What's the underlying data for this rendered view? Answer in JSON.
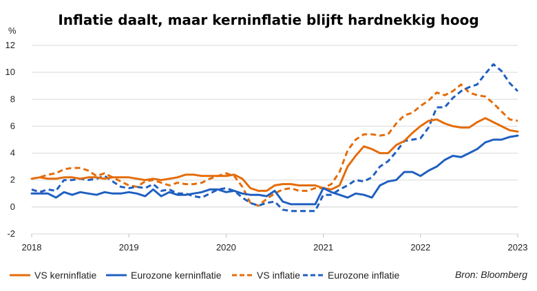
{
  "chart_data": {
    "type": "line",
    "title": "Inflatie daalt, maar kerninflatie blijft hardnekkig hoog",
    "ylabel": "%",
    "xlabel": "",
    "ylim": [
      -2,
      12
    ],
    "yticks": [
      -2,
      0,
      2,
      4,
      6,
      8,
      10,
      12
    ],
    "xlim": [
      2018.0,
      2023.0
    ],
    "xticks": [
      "2018",
      "2019",
      "2020",
      "2021",
      "2022",
      "2023"
    ],
    "grid": true,
    "legend_position": "bottom",
    "source": "Bron: Bloomberg",
    "series": [
      {
        "name": "VS kerninflatie",
        "color": "#E46C0A",
        "dash": "solid",
        "points": [
          [
            2018.0,
            2.1
          ],
          [
            2018.083,
            2.2
          ],
          [
            2018.167,
            2.1
          ],
          [
            2018.25,
            2.1
          ],
          [
            2018.333,
            2.2
          ],
          [
            2018.417,
            2.2
          ],
          [
            2018.5,
            2.1
          ],
          [
            2018.583,
            2.2
          ],
          [
            2018.667,
            2.2
          ],
          [
            2018.75,
            2.1
          ],
          [
            2018.833,
            2.2
          ],
          [
            2018.917,
            2.2
          ],
          [
            2019.0,
            2.2
          ],
          [
            2019.083,
            2.1
          ],
          [
            2019.167,
            2.0
          ],
          [
            2019.25,
            2.1
          ],
          [
            2019.333,
            2.0
          ],
          [
            2019.417,
            2.1
          ],
          [
            2019.5,
            2.2
          ],
          [
            2019.583,
            2.4
          ],
          [
            2019.667,
            2.4
          ],
          [
            2019.75,
            2.3
          ],
          [
            2019.833,
            2.3
          ],
          [
            2019.917,
            2.3
          ],
          [
            2020.0,
            2.3
          ],
          [
            2020.083,
            2.4
          ],
          [
            2020.167,
            2.1
          ],
          [
            2020.25,
            1.4
          ],
          [
            2020.333,
            1.2
          ],
          [
            2020.417,
            1.2
          ],
          [
            2020.5,
            1.6
          ],
          [
            2020.583,
            1.7
          ],
          [
            2020.667,
            1.7
          ],
          [
            2020.75,
            1.6
          ],
          [
            2020.833,
            1.6
          ],
          [
            2020.917,
            1.6
          ],
          [
            2021.0,
            1.4
          ],
          [
            2021.083,
            1.3
          ],
          [
            2021.167,
            1.6
          ],
          [
            2021.25,
            3.0
          ],
          [
            2021.333,
            3.8
          ],
          [
            2021.417,
            4.5
          ],
          [
            2021.5,
            4.3
          ],
          [
            2021.583,
            4.0
          ],
          [
            2021.667,
            4.0
          ],
          [
            2021.75,
            4.6
          ],
          [
            2021.833,
            4.9
          ],
          [
            2021.917,
            5.5
          ],
          [
            2022.0,
            6.0
          ],
          [
            2022.083,
            6.4
          ],
          [
            2022.167,
            6.5
          ],
          [
            2022.25,
            6.2
          ],
          [
            2022.333,
            6.0
          ],
          [
            2022.417,
            5.9
          ],
          [
            2022.5,
            5.9
          ],
          [
            2022.583,
            6.3
          ],
          [
            2022.667,
            6.6
          ],
          [
            2022.75,
            6.3
          ],
          [
            2022.833,
            6.0
          ],
          [
            2022.917,
            5.7
          ],
          [
            2023.0,
            5.6
          ]
        ]
      },
      {
        "name": "Eurozone kerninflatie",
        "color": "#1F5FC0",
        "dash": "solid",
        "points": [
          [
            2018.0,
            1.0
          ],
          [
            2018.083,
            1.0
          ],
          [
            2018.167,
            1.0
          ],
          [
            2018.25,
            0.7
          ],
          [
            2018.333,
            1.1
          ],
          [
            2018.417,
            0.9
          ],
          [
            2018.5,
            1.1
          ],
          [
            2018.583,
            1.0
          ],
          [
            2018.667,
            0.9
          ],
          [
            2018.75,
            1.1
          ],
          [
            2018.833,
            1.0
          ],
          [
            2018.917,
            1.0
          ],
          [
            2019.0,
            1.1
          ],
          [
            2019.083,
            1.0
          ],
          [
            2019.167,
            0.8
          ],
          [
            2019.25,
            1.3
          ],
          [
            2019.333,
            0.8
          ],
          [
            2019.417,
            1.1
          ],
          [
            2019.5,
            0.9
          ],
          [
            2019.583,
            0.9
          ],
          [
            2019.667,
            1.0
          ],
          [
            2019.75,
            1.1
          ],
          [
            2019.833,
            1.3
          ],
          [
            2019.917,
            1.3
          ],
          [
            2020.0,
            1.1
          ],
          [
            2020.083,
            1.2
          ],
          [
            2020.167,
            1.0
          ],
          [
            2020.25,
            0.9
          ],
          [
            2020.333,
            0.9
          ],
          [
            2020.417,
            0.8
          ],
          [
            2020.5,
            1.2
          ],
          [
            2020.583,
            0.4
          ],
          [
            2020.667,
            0.2
          ],
          [
            2020.75,
            0.2
          ],
          [
            2020.833,
            0.2
          ],
          [
            2020.917,
            0.2
          ],
          [
            2021.0,
            1.4
          ],
          [
            2021.083,
            1.1
          ],
          [
            2021.167,
            0.9
          ],
          [
            2021.25,
            0.7
          ],
          [
            2021.333,
            1.0
          ],
          [
            2021.417,
            0.9
          ],
          [
            2021.5,
            0.7
          ],
          [
            2021.583,
            1.6
          ],
          [
            2021.667,
            1.9
          ],
          [
            2021.75,
            2.0
          ],
          [
            2021.833,
            2.6
          ],
          [
            2021.917,
            2.6
          ],
          [
            2022.0,
            2.3
          ],
          [
            2022.083,
            2.7
          ],
          [
            2022.167,
            3.0
          ],
          [
            2022.25,
            3.5
          ],
          [
            2022.333,
            3.8
          ],
          [
            2022.417,
            3.7
          ],
          [
            2022.5,
            4.0
          ],
          [
            2022.583,
            4.3
          ],
          [
            2022.667,
            4.8
          ],
          [
            2022.75,
            5.0
          ],
          [
            2022.833,
            5.0
          ],
          [
            2022.917,
            5.2
          ],
          [
            2023.0,
            5.3
          ]
        ]
      },
      {
        "name": "VS inflatie",
        "color": "#E46C0A",
        "dash": "dashed",
        "points": [
          [
            2018.0,
            2.1
          ],
          [
            2018.083,
            2.2
          ],
          [
            2018.167,
            2.4
          ],
          [
            2018.25,
            2.5
          ],
          [
            2018.333,
            2.8
          ],
          [
            2018.417,
            2.9
          ],
          [
            2018.5,
            2.9
          ],
          [
            2018.583,
            2.7
          ],
          [
            2018.667,
            2.3
          ],
          [
            2018.75,
            2.5
          ],
          [
            2018.833,
            2.2
          ],
          [
            2018.917,
            1.9
          ],
          [
            2019.0,
            1.6
          ],
          [
            2019.083,
            1.5
          ],
          [
            2019.167,
            1.9
          ],
          [
            2019.25,
            2.0
          ],
          [
            2019.333,
            1.8
          ],
          [
            2019.417,
            1.6
          ],
          [
            2019.5,
            1.8
          ],
          [
            2019.583,
            1.7
          ],
          [
            2019.667,
            1.7
          ],
          [
            2019.75,
            1.8
          ],
          [
            2019.833,
            2.1
          ],
          [
            2019.917,
            2.3
          ],
          [
            2020.0,
            2.5
          ],
          [
            2020.083,
            2.3
          ],
          [
            2020.167,
            1.5
          ],
          [
            2020.25,
            0.3
          ],
          [
            2020.333,
            0.1
          ],
          [
            2020.417,
            0.6
          ],
          [
            2020.5,
            1.0
          ],
          [
            2020.583,
            1.3
          ],
          [
            2020.667,
            1.4
          ],
          [
            2020.75,
            1.2
          ],
          [
            2020.833,
            1.2
          ],
          [
            2020.917,
            1.4
          ],
          [
            2021.0,
            1.4
          ],
          [
            2021.083,
            1.7
          ],
          [
            2021.167,
            2.6
          ],
          [
            2021.25,
            4.2
          ],
          [
            2021.333,
            5.0
          ],
          [
            2021.417,
            5.4
          ],
          [
            2021.5,
            5.4
          ],
          [
            2021.583,
            5.3
          ],
          [
            2021.667,
            5.4
          ],
          [
            2021.75,
            6.2
          ],
          [
            2021.833,
            6.8
          ],
          [
            2021.917,
            7.0
          ],
          [
            2022.0,
            7.5
          ],
          [
            2022.083,
            7.9
          ],
          [
            2022.167,
            8.5
          ],
          [
            2022.25,
            8.3
          ],
          [
            2022.333,
            8.6
          ],
          [
            2022.417,
            9.1
          ],
          [
            2022.5,
            8.5
          ],
          [
            2022.583,
            8.3
          ],
          [
            2022.667,
            8.2
          ],
          [
            2022.75,
            7.7
          ],
          [
            2022.833,
            7.1
          ],
          [
            2022.917,
            6.5
          ],
          [
            2023.0,
            6.4
          ]
        ]
      },
      {
        "name": "Eurozone inflatie",
        "color": "#1F5FC0",
        "dash": "dashed",
        "points": [
          [
            2018.0,
            1.3
          ],
          [
            2018.083,
            1.1
          ],
          [
            2018.167,
            1.3
          ],
          [
            2018.25,
            1.2
          ],
          [
            2018.333,
            2.0
          ],
          [
            2018.417,
            2.0
          ],
          [
            2018.5,
            2.1
          ],
          [
            2018.583,
            2.0
          ],
          [
            2018.667,
            2.1
          ],
          [
            2018.75,
            2.3
          ],
          [
            2018.833,
            1.9
          ],
          [
            2018.917,
            1.5
          ],
          [
            2019.0,
            1.4
          ],
          [
            2019.083,
            1.5
          ],
          [
            2019.167,
            1.4
          ],
          [
            2019.25,
            1.7
          ],
          [
            2019.333,
            1.2
          ],
          [
            2019.417,
            1.3
          ],
          [
            2019.5,
            1.0
          ],
          [
            2019.583,
            1.0
          ],
          [
            2019.667,
            0.8
          ],
          [
            2019.75,
            0.7
          ],
          [
            2019.833,
            1.0
          ],
          [
            2019.917,
            1.3
          ],
          [
            2020.0,
            1.4
          ],
          [
            2020.083,
            1.2
          ],
          [
            2020.167,
            0.7
          ],
          [
            2020.25,
            0.3
          ],
          [
            2020.333,
            0.1
          ],
          [
            2020.417,
            0.3
          ],
          [
            2020.5,
            0.4
          ],
          [
            2020.583,
            -0.2
          ],
          [
            2020.667,
            -0.3
          ],
          [
            2020.75,
            -0.3
          ],
          [
            2020.833,
            -0.3
          ],
          [
            2020.917,
            -0.3
          ],
          [
            2021.0,
            0.9
          ],
          [
            2021.083,
            0.9
          ],
          [
            2021.167,
            1.3
          ],
          [
            2021.25,
            1.6
          ],
          [
            2021.333,
            2.0
          ],
          [
            2021.417,
            1.9
          ],
          [
            2021.5,
            2.2
          ],
          [
            2021.583,
            3.0
          ],
          [
            2021.667,
            3.4
          ],
          [
            2021.75,
            4.1
          ],
          [
            2021.833,
            4.9
          ],
          [
            2021.917,
            5.0
          ],
          [
            2022.0,
            5.1
          ],
          [
            2022.083,
            5.9
          ],
          [
            2022.167,
            7.4
          ],
          [
            2022.25,
            7.4
          ],
          [
            2022.333,
            8.1
          ],
          [
            2022.417,
            8.6
          ],
          [
            2022.5,
            8.9
          ],
          [
            2022.583,
            9.1
          ],
          [
            2022.667,
            9.9
          ],
          [
            2022.75,
            10.6
          ],
          [
            2022.833,
            10.1
          ],
          [
            2022.917,
            9.2
          ],
          [
            2023.0,
            8.6
          ]
        ]
      }
    ]
  }
}
